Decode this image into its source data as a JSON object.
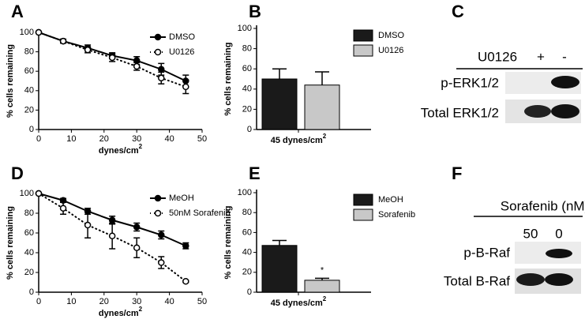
{
  "chart_data": [
    {
      "type": "line",
      "panel": "A",
      "y_label": "% cells remaining",
      "x_label": {
        "text": "dynes/cm",
        "sup": "2"
      },
      "x": [
        0,
        7.5,
        15,
        22.5,
        30,
        37.5,
        45
      ],
      "xlim": [
        0,
        50
      ],
      "xticks": [
        0,
        10,
        20,
        30,
        40,
        50
      ],
      "ylim": [
        0,
        100
      ],
      "yticks": [
        0,
        20,
        40,
        60,
        80,
        100
      ],
      "legend": "top-right",
      "series": [
        {
          "name": "DMSO",
          "color": "#000000",
          "marker": "filled",
          "dash": "solid",
          "values": [
            100,
            91,
            84,
            76,
            71,
            62,
            50
          ],
          "errors": [
            0,
            2,
            3,
            3,
            4,
            6,
            6
          ]
        },
        {
          "name": "U0126",
          "color": "#000000",
          "marker": "open",
          "dash": "dotted",
          "values": [
            100,
            91,
            82,
            74,
            65,
            53,
            44
          ],
          "errors": [
            0,
            2,
            3,
            4,
            4,
            6,
            7
          ]
        }
      ]
    },
    {
      "type": "bar",
      "panel": "B",
      "y_label": "% cells remaining",
      "categories": [
        {
          "text": "45 dynes/cm",
          "sup": "2"
        }
      ],
      "ylim": [
        0,
        100
      ],
      "yticks": [
        0,
        20,
        40,
        60,
        80,
        100
      ],
      "legend": "top-right",
      "series": [
        {
          "name": "DMSO",
          "color": "#1a1a1a",
          "values": [
            50
          ],
          "errors": [
            10
          ]
        },
        {
          "name": "U0126",
          "color": "#c8c8c8",
          "values": [
            44
          ],
          "errors": [
            13
          ]
        }
      ]
    },
    {
      "type": "line",
      "panel": "D",
      "y_label": "% cells remaining",
      "x_label": {
        "text": "dynes/cm",
        "sup": "2"
      },
      "x": [
        0,
        7.5,
        15,
        22.5,
        30,
        37.5,
        45
      ],
      "xlim": [
        0,
        50
      ],
      "xticks": [
        0,
        10,
        20,
        30,
        40,
        50
      ],
      "ylim": [
        0,
        100
      ],
      "yticks": [
        0,
        20,
        40,
        60,
        80,
        100
      ],
      "legend": "top-right",
      "series": [
        {
          "name": "MeOH",
          "color": "#000000",
          "marker": "filled",
          "dash": "solid",
          "values": [
            100,
            93,
            82,
            73,
            66,
            58,
            47
          ],
          "errors": [
            0,
            2,
            3,
            4,
            4,
            4,
            3
          ]
        },
        {
          "name": "50nM Sorafenib",
          "color": "#000000",
          "marker": "open",
          "dash": "dotted",
          "values": [
            100,
            85,
            68,
            57,
            45,
            30,
            11
          ],
          "errors": [
            0,
            6,
            13,
            13,
            10,
            6,
            1
          ]
        }
      ]
    },
    {
      "type": "bar",
      "panel": "E",
      "y_label": "% cells remaining",
      "categories": [
        {
          "text": "45 dynes/cm",
          "sup": "2"
        }
      ],
      "ylim": [
        0,
        100
      ],
      "yticks": [
        0,
        20,
        40,
        60,
        80,
        100
      ],
      "legend": "top-right",
      "annotation": "*",
      "series": [
        {
          "name": "MeOH",
          "color": "#1a1a1a",
          "values": [
            47
          ],
          "errors": [
            5
          ]
        },
        {
          "name": "Sorafenib",
          "color": "#c8c8c8",
          "values": [
            12
          ],
          "errors": [
            2
          ]
        }
      ]
    }
  ],
  "blots": [
    {
      "panel": "C",
      "header": "U0126",
      "lanes": [
        "+",
        "-"
      ],
      "rows": [
        "p-ERK1/2",
        "Total ERK1/2"
      ]
    },
    {
      "panel": "F",
      "header": "Sorafenib (nM)",
      "lanes": [
        "50",
        "0"
      ],
      "rows": [
        "p-B-Raf",
        "Total B-Raf"
      ]
    }
  ]
}
